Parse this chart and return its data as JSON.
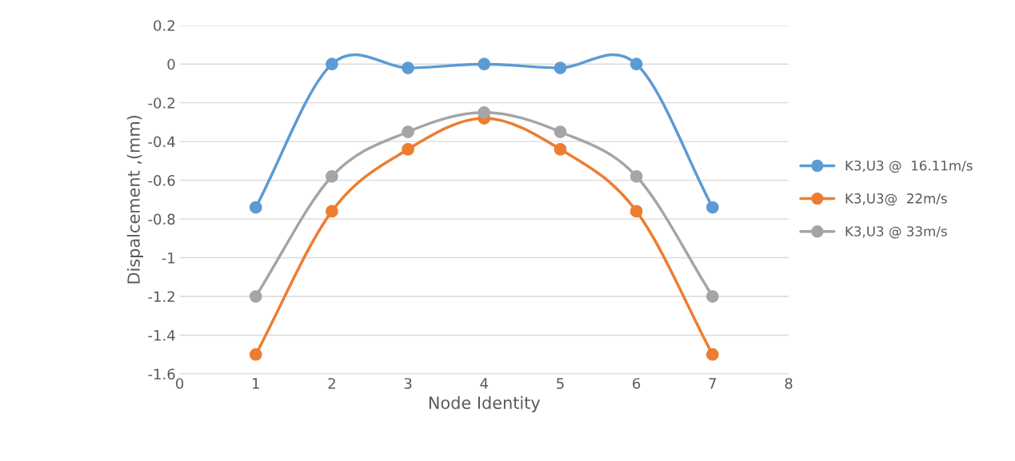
{
  "chart_data": {
    "type": "line",
    "xlabel": "Node Identity",
    "ylabel": "Dispalcement ,(mm)",
    "x": [
      1,
      2,
      3,
      4,
      5,
      6,
      7
    ],
    "series": [
      {
        "name": "K3,U3 @  16.11m/s",
        "color": "#5b9bd5",
        "values": [
          -0.74,
          0,
          -0.02,
          0,
          -0.02,
          0,
          -0.74
        ]
      },
      {
        "name": "K3,U3@  22m/s",
        "color": "#ed7d31",
        "values": [
          -1.5,
          -0.76,
          -0.44,
          -0.28,
          -0.44,
          -0.76,
          -1.5
        ]
      },
      {
        "name": "K3,U3 @ 33m/s",
        "color": "#a5a5a5",
        "values": [
          -1.2,
          -0.58,
          -0.35,
          -0.25,
          -0.35,
          -0.58,
          -1.2
        ]
      }
    ],
    "xlim": [
      0,
      8
    ],
    "xticks": [
      0,
      1,
      2,
      3,
      4,
      5,
      6,
      7,
      8
    ],
    "ylim": [
      -1.6,
      0.2
    ],
    "yticks": [
      -1.6,
      -1.4,
      -1.2,
      -1,
      -0.8,
      -0.6,
      -0.4,
      -0.2,
      0,
      0.2
    ],
    "grid": "y",
    "legend": "right",
    "marker": "circle",
    "line_style": "solid"
  }
}
